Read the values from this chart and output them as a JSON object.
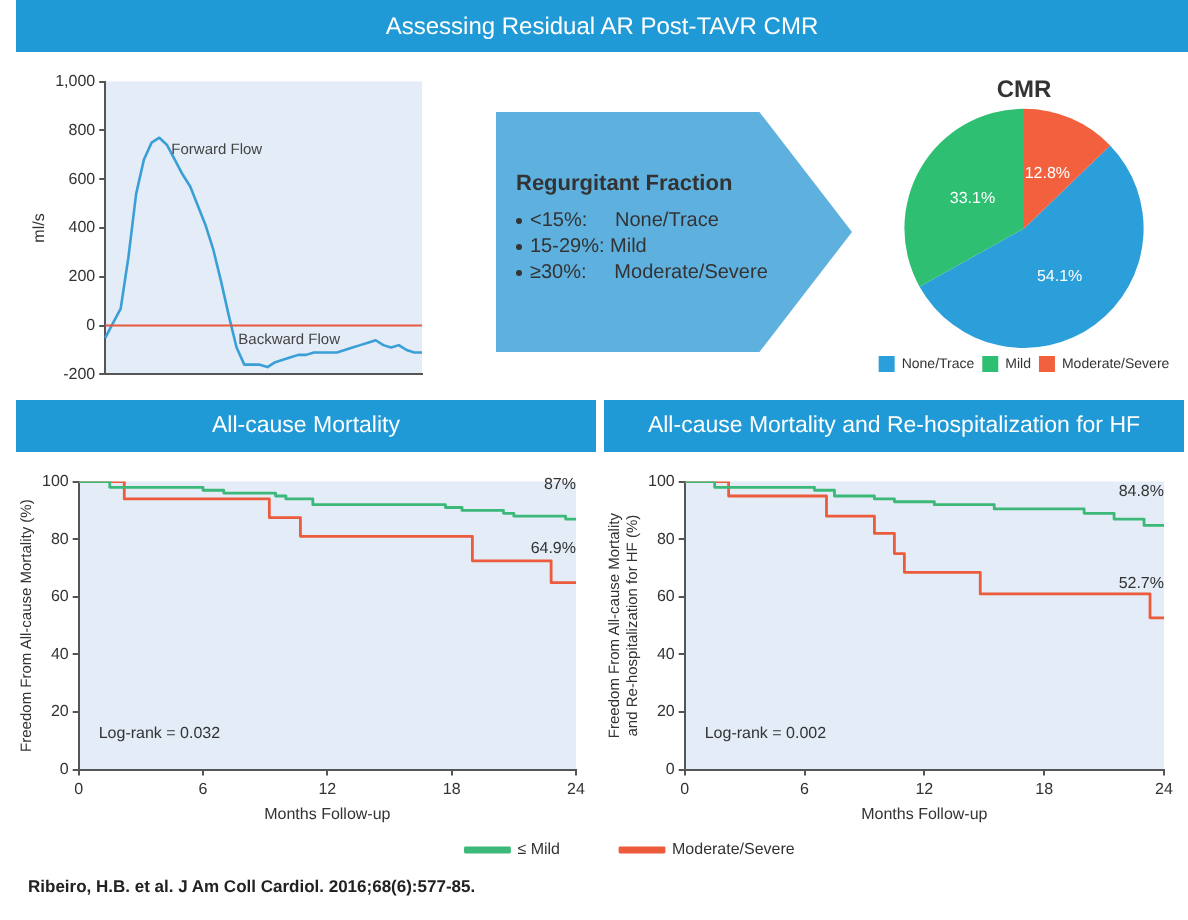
{
  "chart_data": [
    {
      "type": "line",
      "title": "Assessing Residual AR Post-TAVR CMR",
      "ylabel": "ml/s",
      "categories": [
        null,
        null,
        null,
        null,
        null,
        null,
        null,
        null,
        null,
        null,
        null,
        null,
        null,
        null,
        null,
        null,
        null,
        null,
        null,
        null,
        null,
        null,
        null,
        null,
        null,
        null,
        null,
        null,
        null,
        null,
        null,
        null,
        null,
        null,
        null,
        null,
        null,
        null,
        null,
        null,
        null,
        null
      ],
      "series": [
        {
          "color": "#3a9fd6",
          "values": [
            -50,
            10,
            70,
            280,
            540,
            680,
            750,
            770,
            740,
            680,
            620,
            570,
            490,
            410,
            310,
            180,
            40,
            -90,
            -160,
            -160,
            -160,
            -170,
            -150,
            -140,
            -130,
            -120,
            -120,
            -110,
            -110,
            -110,
            -110,
            -100,
            -90,
            -80,
            -70,
            -60,
            -80,
            -90,
            -80,
            -100,
            -110,
            -110
          ]
        }
      ],
      "ylim": [
        -200,
        1000
      ],
      "yticks": [
        -200,
        0,
        200,
        400,
        600,
        800,
        {
          "value": 1000,
          "label": "1,000"
        }
      ],
      "tick_labels": "y",
      "marker": "none",
      "ref_lines": [
        {
          "axis": "y",
          "value": 0,
          "color": "#e8593f"
        }
      ],
      "annotations": [
        "Forward Flow",
        "Backward Flow"
      ]
    },
    {
      "type": "other",
      "title": "Regurgitant Fraction",
      "annotations": [
        "<15%:     None/Trace",
        "15-29%: Mild",
        "≥30%:     Moderate/Severe"
      ]
    },
    {
      "type": "pie",
      "title": "CMR",
      "categories": [
        "None/Trace",
        "Mild",
        "Moderate/Severe"
      ],
      "values": [
        54.1,
        33.1,
        12.8
      ],
      "colors": [
        "#2b9fd9",
        "#2fbf73",
        "#f2603e"
      ],
      "value_labels": [
        "54.1%",
        "33.1%",
        "12.8%"
      ],
      "legend": "bottom"
    },
    {
      "type": "step",
      "title": "All-cause Mortality",
      "xlabel": "Months Follow-up",
      "ylabel": "Freedom From All-cause Mortality (%)",
      "xlim": [
        0,
        24
      ],
      "xticks": [
        0,
        6,
        12,
        18,
        24
      ],
      "ylim": [
        0,
        100
      ],
      "yticks": [
        0,
        20,
        40,
        60,
        80,
        100
      ],
      "legend": "bottom right",
      "marker": "none",
      "series": [
        {
          "name": "≤ Mild",
          "color": "#3cb878",
          "x": [
            0,
            1.5,
            6,
            7,
            9.5,
            10,
            11.3,
            17.7,
            18.5,
            20.5,
            21,
            23.5,
            24
          ],
          "values": [
            100,
            98,
            97,
            96,
            95,
            94,
            92,
            91,
            90,
            89,
            88,
            87,
            87
          ],
          "value_labels": [
            null,
            null,
            null,
            null,
            null,
            null,
            null,
            null,
            null,
            null,
            null,
            null,
            "87%"
          ]
        },
        {
          "color": "#ec5b3b",
          "x": [
            0,
            2.2,
            9.2,
            10.7,
            19,
            22.8,
            24
          ],
          "values": [
            100,
            94,
            87.5,
            81,
            72.5,
            64.9,
            64.9
          ],
          "value_labels": [
            null,
            null,
            null,
            null,
            null,
            null,
            "64.9%"
          ]
        }
      ],
      "annotations": [
        "Log-rank = 0.032",
        "Ribeiro, H.B. et al. J Am Coll Cardiol. 2016;68(6):577-85."
      ]
    },
    {
      "type": "step",
      "title": "All-cause Mortality and Re-hospitalization for HF",
      "xlabel": "Months Follow-up",
      "ylabel": "Freedom From All-cause Mortality and Re-hospitalization for HF (%)",
      "xlim": [
        0,
        24
      ],
      "xticks": [
        0,
        6,
        12,
        18,
        24
      ],
      "ylim": [
        0,
        100
      ],
      "yticks": [
        0,
        20,
        40,
        60,
        80,
        100
      ],
      "legend": "bottom left",
      "marker": "none",
      "series": [
        {
          "color": "#3cb878",
          "x": [
            0,
            1.5,
            6.5,
            7.5,
            9.5,
            10.5,
            12.5,
            15.5,
            20,
            21.5,
            23,
            24
          ],
          "values": [
            100,
            98,
            97,
            95,
            94,
            93,
            92,
            90.5,
            89,
            87,
            84.8,
            84.8
          ],
          "value_labels": [
            null,
            null,
            null,
            null,
            null,
            null,
            null,
            null,
            null,
            null,
            null,
            "84.8%"
          ]
        },
        {
          "name": "Moderate/Severe",
          "color": "#ec5b3b",
          "x": [
            0,
            2.2,
            7.1,
            9.5,
            10.5,
            11,
            14.8,
            23.3,
            24
          ],
          "values": [
            100,
            95,
            88,
            82,
            75,
            68.5,
            61,
            52.7,
            52.7
          ],
          "value_labels": [
            null,
            null,
            null,
            null,
            null,
            null,
            null,
            null,
            "52.7%"
          ]
        }
      ],
      "annotations": [
        "Log-rank = 0.002"
      ]
    }
  ]
}
